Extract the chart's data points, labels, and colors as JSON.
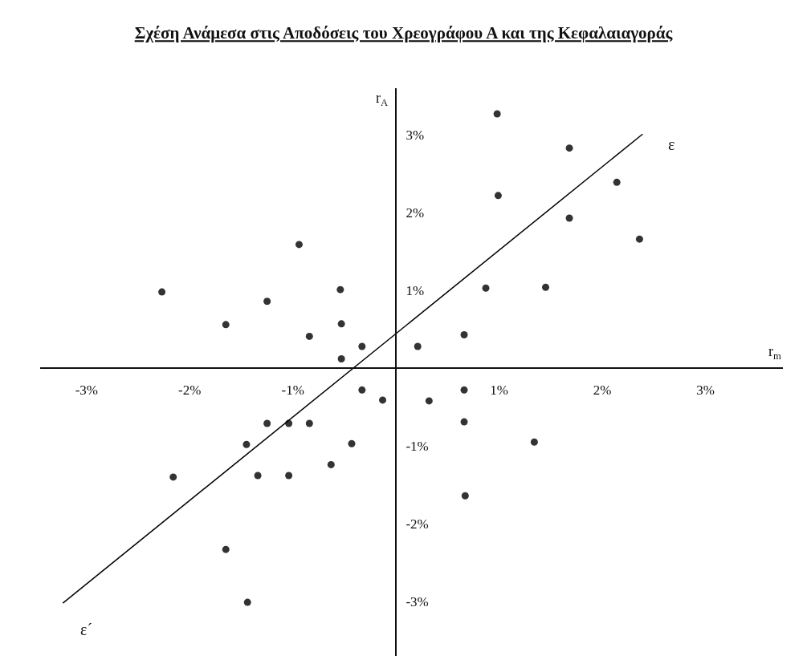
{
  "chart_data": {
    "type": "scatter",
    "title": "Σχέση Ανάμεσα στις Αποδόσεις του Χρεογράφου Α και της Κεφαλαιαγοράς",
    "xlabel": "r$_{m}$",
    "ylabel": "r$_{A}$",
    "xlim": [
      -3.45,
      3.75
    ],
    "ylim": [
      -3.7,
      3.6
    ],
    "xticks": [
      {
        "value": -3,
        "label": "-3%"
      },
      {
        "value": -2,
        "label": "-2%"
      },
      {
        "value": -1,
        "label": "-1%"
      },
      {
        "value": 1,
        "label": "1%"
      },
      {
        "value": 2,
        "label": "2%"
      },
      {
        "value": 3,
        "label": "3%"
      }
    ],
    "yticks": [
      {
        "value": -3,
        "label": "-3%"
      },
      {
        "value": -2,
        "label": "-2%"
      },
      {
        "value": -1,
        "label": "-1%"
      },
      {
        "value": 1,
        "label": "1%"
      },
      {
        "value": 2,
        "label": "2%"
      },
      {
        "value": 3,
        "label": "3%"
      }
    ],
    "series": [
      {
        "color": "#333333",
        "marker": "circle",
        "x": [
          -0.94,
          -2.27,
          -1.25,
          -0.54,
          -1.65,
          -0.53,
          -0.84,
          -0.33,
          -0.53,
          0.98,
          1.68,
          2.14,
          0.99,
          1.68,
          2.36,
          0.87,
          1.45,
          0.66,
          0.21,
          -0.33,
          -0.13,
          -1.25,
          -1.04,
          -0.84,
          -1.45,
          -0.43,
          -0.63,
          -2.16,
          -1.34,
          -1.04,
          -1.65,
          -1.44,
          0.66,
          0.32,
          0.66,
          1.34,
          0.67
        ],
        "values": [
          1.59,
          0.98,
          0.86,
          1.01,
          0.56,
          0.57,
          0.41,
          0.28,
          0.12,
          3.27,
          2.83,
          2.39,
          2.22,
          1.93,
          1.66,
          1.03,
          1.04,
          0.43,
          0.28,
          -0.28,
          -0.41,
          -0.71,
          -0.71,
          -0.71,
          -0.98,
          -0.97,
          -1.24,
          -1.4,
          -1.38,
          -1.38,
          -2.33,
          -3.01,
          -0.28,
          -0.42,
          -0.69,
          -0.95,
          -1.64
        ]
      },
      {
        "type": "line",
        "color": "#000000",
        "x": [
          -3.23,
          2.39
        ],
        "values": [
          -3.02,
          3.01
        ]
      }
    ],
    "annotations": [
      "ε",
      "ε´"
    ]
  }
}
